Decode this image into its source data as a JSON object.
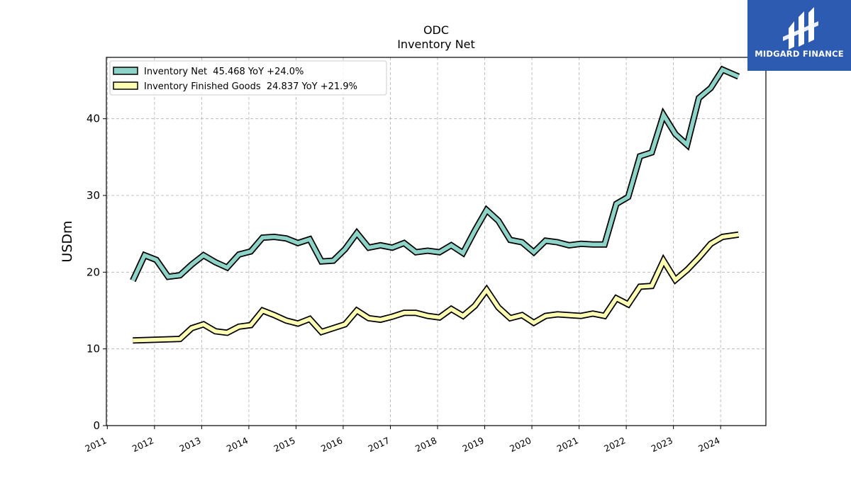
{
  "brand": {
    "name": "MIDGARD FINANCE",
    "background": "#2d5bb1",
    "icon": "midgard-logo-icon"
  },
  "chart_data": {
    "type": "line",
    "title": "ODC",
    "subtitle": "Inventory Net",
    "xlabel": "",
    "ylabel": "USDm",
    "ylim": [
      0,
      48
    ],
    "yticks": [
      0,
      10,
      20,
      30,
      40
    ],
    "xlim": [
      2010.98,
      2024.96
    ],
    "xticks": [
      "2011",
      "2012",
      "2013",
      "2014",
      "2015",
      "2016",
      "2017",
      "2018",
      "2019",
      "2020",
      "2021",
      "2022",
      "2023",
      "2024"
    ],
    "grid": true,
    "legend_position": "top-left",
    "series": [
      {
        "name": "Inventory Net  45.468 YoY +24.0%",
        "color": "#8dd3c7",
        "x": [
          2011.54,
          2011.79,
          2012.04,
          2012.29,
          2012.54,
          2012.79,
          2013.04,
          2013.29,
          2013.54,
          2013.79,
          2014.04,
          2014.29,
          2014.54,
          2014.79,
          2015.04,
          2015.29,
          2015.54,
          2015.79,
          2016.04,
          2016.29,
          2016.54,
          2016.79,
          2017.04,
          2017.29,
          2017.54,
          2017.79,
          2018.04,
          2018.29,
          2018.54,
          2018.79,
          2019.04,
          2019.29,
          2019.54,
          2019.79,
          2020.04,
          2020.29,
          2020.54,
          2020.79,
          2021.04,
          2021.29,
          2021.54,
          2021.79,
          2022.04,
          2022.29,
          2022.54,
          2022.79,
          2023.04,
          2023.29,
          2023.54,
          2023.79,
          2024.04,
          2024.38
        ],
        "y": [
          18.9,
          22.2,
          21.6,
          19.4,
          19.6,
          21.0,
          22.2,
          21.3,
          20.6,
          22.3,
          22.7,
          24.5,
          24.6,
          24.4,
          23.8,
          24.3,
          21.4,
          21.5,
          23.0,
          25.1,
          23.2,
          23.5,
          23.2,
          23.8,
          22.6,
          22.8,
          22.6,
          23.5,
          22.5,
          25.4,
          28.1,
          26.7,
          24.2,
          23.9,
          22.6,
          24.1,
          23.9,
          23.5,
          23.7,
          23.6,
          23.6,
          28.9,
          29.8,
          35.1,
          35.6,
          40.5,
          38.0,
          36.6,
          42.7,
          44.0,
          46.4,
          45.5
        ]
      },
      {
        "name": "Inventory Finished Goods  24.837 YoY +21.9%",
        "color": "#ffffb3",
        "x": [
          2011.54,
          2012.54,
          2012.79,
          2013.04,
          2013.29,
          2013.54,
          2013.79,
          2014.04,
          2014.29,
          2014.54,
          2014.79,
          2015.04,
          2015.29,
          2015.54,
          2015.79,
          2016.04,
          2016.29,
          2016.54,
          2016.79,
          2017.04,
          2017.29,
          2017.54,
          2017.79,
          2018.04,
          2018.29,
          2018.54,
          2018.79,
          2019.04,
          2019.29,
          2019.54,
          2019.79,
          2020.04,
          2020.29,
          2020.54,
          2020.79,
          2021.04,
          2021.29,
          2021.54,
          2021.79,
          2022.04,
          2022.29,
          2022.54,
          2022.79,
          2023.04,
          2023.29,
          2023.54,
          2023.79,
          2024.04,
          2024.38
        ],
        "y": [
          11.1,
          11.3,
          12.7,
          13.2,
          12.3,
          12.1,
          12.9,
          13.1,
          15.0,
          14.4,
          13.7,
          13.3,
          13.9,
          12.2,
          12.7,
          13.2,
          15.0,
          14.0,
          13.8,
          14.2,
          14.7,
          14.7,
          14.3,
          14.1,
          15.2,
          14.3,
          15.6,
          17.7,
          15.4,
          14.0,
          14.4,
          13.4,
          14.3,
          14.5,
          14.4,
          14.3,
          14.6,
          14.3,
          16.6,
          15.8,
          18.1,
          18.2,
          21.5,
          19.0,
          20.3,
          21.9,
          23.7,
          24.6,
          24.9
        ]
      }
    ]
  }
}
